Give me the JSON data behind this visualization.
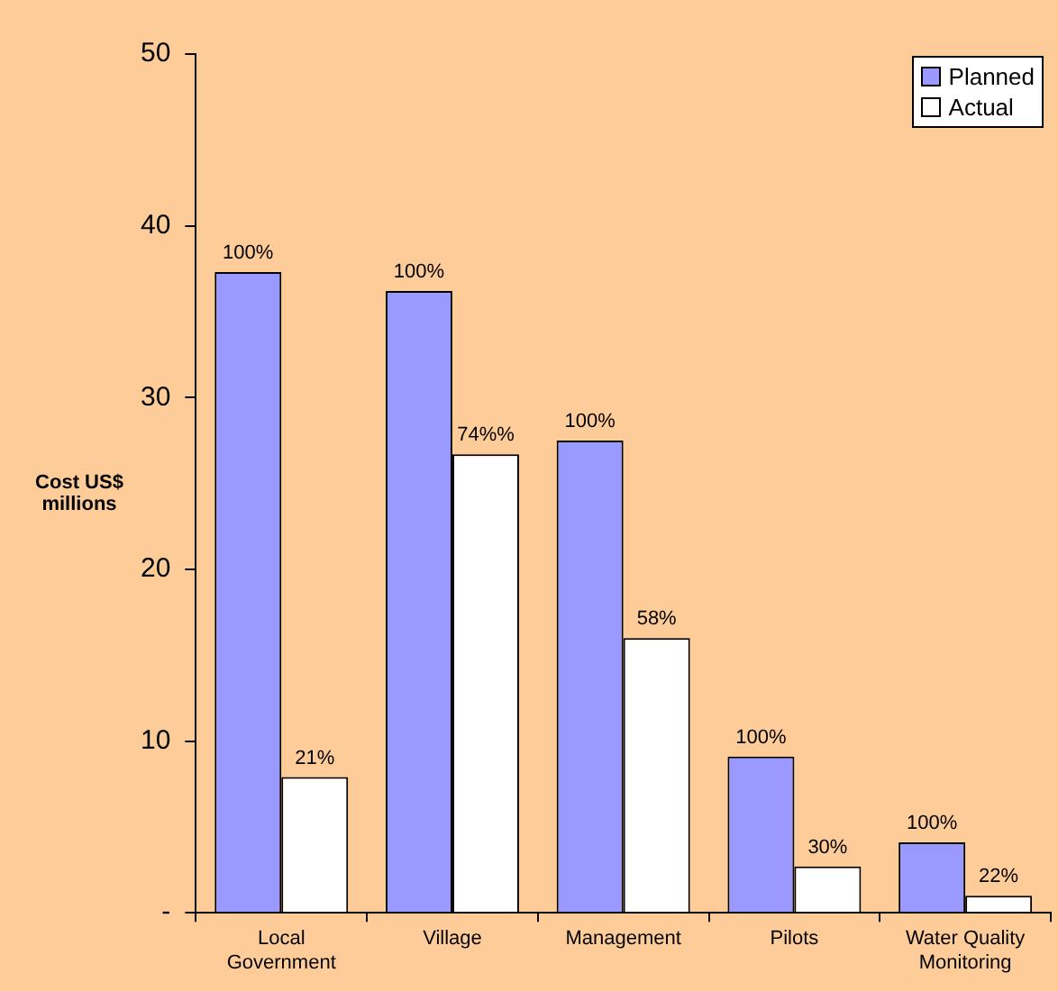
{
  "chart_data": {
    "type": "bar",
    "ylabel": "Cost US$ millions",
    "categories": [
      "Local Government",
      "Village",
      "Management",
      "Pilots",
      "Water Quality Monitoring"
    ],
    "series": [
      {
        "name": "Planned",
        "color": "#9999ff",
        "values": [
          37.3,
          36.2,
          27.5,
          9.1,
          4.1
        ]
      },
      {
        "name": "Actual",
        "color": "#ffffff",
        "values": [
          7.9,
          26.7,
          16.0,
          2.7,
          1.0
        ]
      }
    ],
    "annotations": [
      {
        "text": "100%",
        "x": "Local Government",
        "y": 37.3
      },
      {
        "text": "21%",
        "x": "Local Government",
        "y": 7.9
      },
      {
        "text": "100%",
        "x": "Village",
        "y": 36.2
      },
      {
        "text": "74%%",
        "x": "Village",
        "y": 26.7
      },
      {
        "text": "100%",
        "x": "Management",
        "y": 27.5
      },
      {
        "text": "58%",
        "x": "Management",
        "y": 16.0
      },
      {
        "text": "100%",
        "x": "Pilots",
        "y": 9.1
      },
      {
        "text": "30%",
        "x": "Pilots",
        "y": 2.7
      },
      {
        "text": "100%",
        "x": "Water Quality Monitoring",
        "y": 4.1
      },
      {
        "text": "22%",
        "x": "Water Quality Monitoring",
        "y": 1.0
      }
    ],
    "ylim": [
      0,
      50
    ],
    "yticks": [
      {
        "value": 0,
        "label": "-"
      },
      10,
      20,
      30,
      40,
      50
    ],
    "grid": false,
    "legend": "top right"
  }
}
